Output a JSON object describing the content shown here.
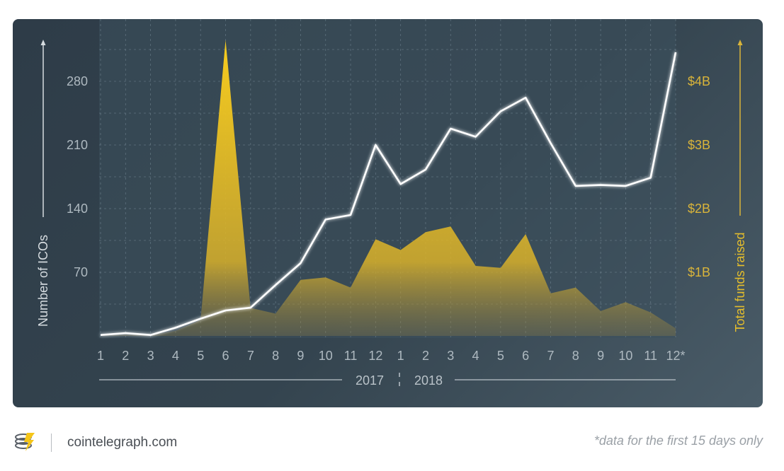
{
  "chart_data": {
    "type": "line",
    "title": "",
    "x_categories": [
      "1",
      "2",
      "3",
      "4",
      "5",
      "6",
      "7",
      "8",
      "9",
      "10",
      "11",
      "12",
      "1",
      "2",
      "3",
      "4",
      "5",
      "6",
      "7",
      "8",
      "9",
      "10",
      "11",
      "12*"
    ],
    "x_years": [
      "2017",
      "2018"
    ],
    "left_axis": {
      "label": "Number of ICOs",
      "ticks": [
        "70",
        "140",
        "210",
        "280"
      ],
      "tick_values": [
        70,
        140,
        210,
        280
      ],
      "range": [
        0,
        280
      ]
    },
    "right_axis": {
      "label": "Total funds raised",
      "ticks": [
        "$1B",
        "$2B",
        "$3B",
        "$4B"
      ],
      "tick_values": [
        1,
        2,
        3,
        4
      ],
      "range": [
        0,
        4
      ],
      "unit": "billion USD"
    },
    "series": [
      {
        "name": "Number of ICOs",
        "kind": "line",
        "axis": "left",
        "color": "#ffffff",
        "values": [
          1,
          3,
          1,
          9,
          19,
          28,
          31,
          56,
          80,
          128,
          133,
          210,
          167,
          183,
          228,
          219,
          247,
          262,
          212,
          165,
          166,
          165,
          174,
          312
        ]
      },
      {
        "name": "Total funds raised",
        "kind": "area",
        "axis": "right",
        "color": "#f5c518",
        "values": [
          0.0,
          0.02,
          0.01,
          0.08,
          0.25,
          4.65,
          0.44,
          0.35,
          0.88,
          0.92,
          0.76,
          1.52,
          1.35,
          1.63,
          1.72,
          1.1,
          1.07,
          1.6,
          0.67,
          0.76,
          0.39,
          0.53,
          0.37,
          0.12
        ]
      }
    ],
    "grid": true
  },
  "footer": {
    "site": "cointelegraph.com",
    "note": "*data for the first 15 days only"
  },
  "colors": {
    "background": "#34444f",
    "accent": "#f5c518",
    "line": "#ffffff"
  }
}
